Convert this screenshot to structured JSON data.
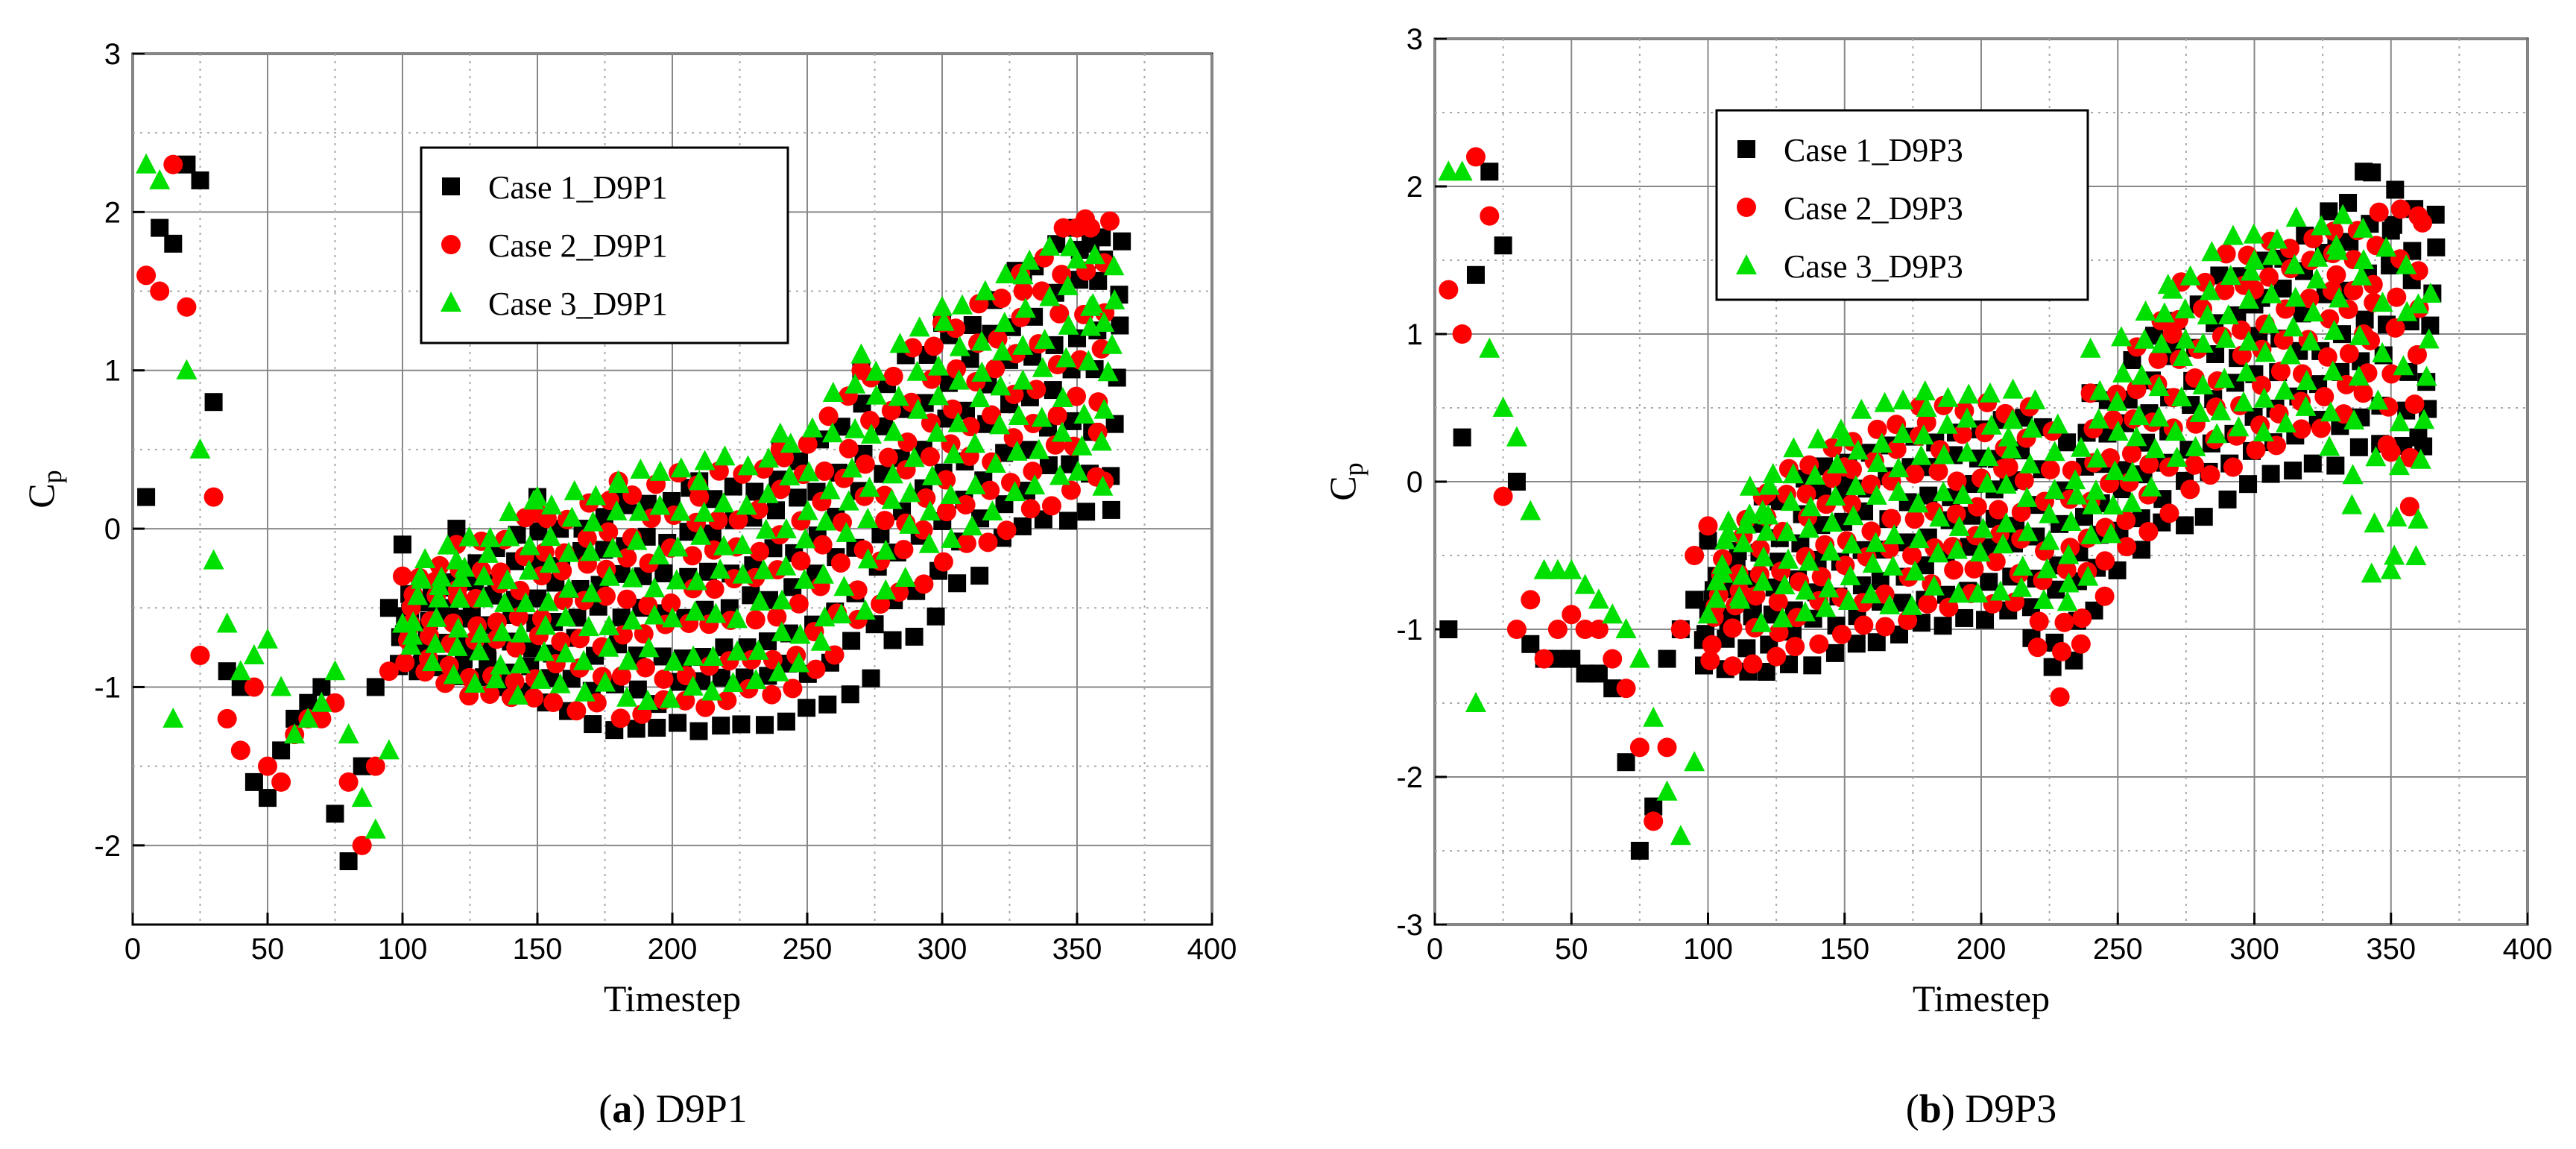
{
  "figure": {
    "series_colors": [
      "#000000",
      "#ff0000",
      "#00e000"
    ],
    "series_markers": [
      "square",
      "circle",
      "triangle"
    ]
  },
  "chart_data": [
    {
      "type": "scatter",
      "caption_letter": "a",
      "caption_text": "D9P1",
      "xlabel": "Timestep",
      "ylabel_main": "C",
      "ylabel_sub": "p",
      "xlim": [
        0,
        400
      ],
      "ylim": [
        -2.5,
        3
      ],
      "xticks": [
        "0",
        "50",
        "100",
        "150",
        "200",
        "250",
        "300",
        "350",
        "400"
      ],
      "yticks": [
        "-2",
        "-1",
        "0",
        "1",
        "2",
        "3"
      ],
      "legend_position": "top-center",
      "grid": true,
      "series": [
        {
          "name": "Case 1_D9P1",
          "x": [
            5,
            10,
            15,
            20,
            25,
            30,
            35,
            40,
            45,
            50,
            55,
            60,
            65,
            70,
            75,
            80,
            85,
            90,
            95,
            100,
            120,
            150,
            180,
            210,
            240,
            270,
            300,
            330,
            350,
            355,
            360
          ],
          "y": [
            0.2,
            1.9,
            1.8,
            2.3,
            2.2,
            0.8,
            -0.9,
            -1.0,
            -1.6,
            -1.7,
            -1.4,
            -1.2,
            -1.1,
            -1.0,
            -1.8,
            -2.1,
            -1.5,
            -1.0,
            -0.5,
            -0.1,
            0.0,
            0.2,
            0.2,
            0.3,
            0.5,
            1.0,
            1.3,
            1.6,
            1.9,
            1.8,
            1.7
          ],
          "band_min": [
            -0.9,
            -0.9,
            -1.0,
            -1.1,
            -1.2,
            -1.3,
            -1.25,
            -1.2,
            -1.15,
            -1.0,
            -0.7,
            -0.4,
            -0.1,
            0.1,
            0.1
          ],
          "band_max": [
            -0.4,
            -0.3,
            -0.1,
            0.0,
            0.1,
            0.2,
            0.25,
            0.3,
            0.5,
            0.8,
            1.1,
            1.3,
            1.6,
            1.8,
            1.8
          ]
        },
        {
          "name": "Case 2_D9P1",
          "x": [
            5,
            10,
            15,
            20,
            25,
            30,
            35,
            40,
            45,
            50,
            55,
            60,
            65,
            70,
            75,
            80,
            85,
            90,
            95,
            100,
            120,
            150,
            180,
            210,
            240,
            270,
            300,
            330,
            350,
            355,
            360
          ],
          "y": [
            1.6,
            1.5,
            2.3,
            1.4,
            -0.8,
            0.2,
            -1.2,
            -1.4,
            -1.0,
            -1.5,
            -1.6,
            -1.3,
            -1.2,
            -1.2,
            -1.1,
            -1.6,
            -2.0,
            -1.5,
            -0.9,
            -0.3,
            -0.1,
            0.1,
            0.3,
            0.2,
            0.5,
            1.0,
            1.3,
            1.5,
            1.9,
            1.9,
            0.3
          ],
          "band_min": [
            -0.8,
            -1.0,
            -1.1,
            -1.1,
            -1.15,
            -1.15,
            -1.1,
            -1.05,
            -1.0,
            -0.6,
            -0.4,
            -0.1,
            0.0,
            0.2,
            0.3
          ],
          "band_max": [
            -0.3,
            -0.2,
            0.0,
            0.1,
            0.2,
            0.3,
            0.3,
            0.4,
            0.6,
            0.9,
            1.1,
            1.3,
            1.6,
            1.9,
            1.9
          ]
        },
        {
          "name": "Case 3_D9P1",
          "x": [
            5,
            10,
            15,
            20,
            25,
            30,
            35,
            40,
            45,
            50,
            55,
            60,
            65,
            70,
            75,
            80,
            85,
            90,
            95,
            100,
            120,
            150,
            180,
            210,
            240,
            270,
            300,
            330,
            350,
            355,
            360
          ],
          "y": [
            2.3,
            2.2,
            -1.2,
            1.0,
            0.5,
            -0.2,
            -0.6,
            -0.9,
            -0.8,
            -0.7,
            -1.0,
            -1.3,
            -1.2,
            -1.1,
            -0.9,
            -1.3,
            -1.7,
            -1.9,
            -1.4,
            -0.6,
            -0.2,
            0.2,
            0.3,
            0.3,
            0.6,
            1.1,
            1.4,
            1.6,
            1.7,
            1.4,
            1.3
          ],
          "band_min": [
            -0.7,
            -0.9,
            -1.0,
            -1.0,
            -1.0,
            -1.05,
            -1.0,
            -0.95,
            -0.9,
            -0.5,
            -0.3,
            0.0,
            0.2,
            0.3,
            0.3
          ],
          "band_max": [
            -0.2,
            -0.1,
            0.1,
            0.2,
            0.3,
            0.35,
            0.4,
            0.4,
            0.7,
            1.0,
            1.2,
            1.4,
            1.6,
            1.8,
            1.6
          ]
        }
      ]
    },
    {
      "type": "scatter",
      "caption_letter": "b",
      "caption_text": "D9P3",
      "xlabel": "Timestep",
      "ylabel_main": "C",
      "ylabel_sub": "p",
      "xlim": [
        0,
        400
      ],
      "ylim": [
        -3,
        3
      ],
      "xticks": [
        "0",
        "50",
        "100",
        "150",
        "200",
        "250",
        "300",
        "350",
        "400"
      ],
      "yticks": [
        "-3",
        "-2",
        "-1",
        "0",
        "1",
        "2",
        "3"
      ],
      "legend_position": "top-left",
      "grid": true,
      "series": [
        {
          "name": "Case 1_D9P3",
          "x": [
            5,
            10,
            15,
            20,
            25,
            30,
            35,
            40,
            45,
            50,
            55,
            60,
            65,
            70,
            75,
            80,
            85,
            90,
            95,
            100,
            120,
            150,
            180,
            210,
            240,
            270,
            300,
            330,
            340,
            350,
            360
          ],
          "y": [
            -1.0,
            0.3,
            1.4,
            2.1,
            1.6,
            0.0,
            -1.1,
            -1.2,
            -1.2,
            -1.2,
            -1.3,
            -1.3,
            -1.4,
            -1.9,
            -2.5,
            -2.2,
            -1.2,
            -1.0,
            -0.8,
            -0.4,
            -0.1,
            0.0,
            0.1,
            0.0,
            0.6,
            0.9,
            1.2,
            1.6,
            2.1,
            1.7,
            0.3
          ],
          "band_min": [
            -1.2,
            -1.3,
            -1.2,
            -1.1,
            -1.0,
            -0.95,
            -0.9,
            -1.4,
            -0.6,
            -0.3,
            -0.2,
            0.0,
            0.1,
            0.2,
            0.2
          ],
          "band_max": [
            -0.6,
            -0.2,
            0.1,
            0.2,
            0.3,
            0.4,
            0.4,
            0.2,
            0.8,
            1.1,
            1.4,
            1.5,
            1.8,
            2.1,
            1.8
          ]
        },
        {
          "name": "Case 2_D9P3",
          "x": [
            5,
            10,
            15,
            20,
            25,
            30,
            35,
            40,
            45,
            50,
            55,
            60,
            65,
            70,
            75,
            80,
            85,
            90,
            95,
            100,
            120,
            150,
            180,
            210,
            240,
            270,
            300,
            330,
            340,
            350,
            360
          ],
          "y": [
            1.3,
            1.0,
            2.2,
            1.8,
            -0.1,
            -1.0,
            -0.8,
            -1.2,
            -1.0,
            -0.9,
            -1.0,
            -1.0,
            -1.2,
            -1.4,
            -1.8,
            -2.3,
            -1.8,
            -1.0,
            -0.5,
            -0.3,
            -0.1,
            0.1,
            0.4,
            0.1,
            0.6,
            1.0,
            1.3,
            1.4,
            1.0,
            0.2,
            1.8
          ],
          "band_min": [
            -1.2,
            -1.2,
            -1.1,
            -1.0,
            -0.9,
            -0.8,
            -0.8,
            -1.5,
            -0.5,
            -0.2,
            0.0,
            0.2,
            0.4,
            0.6,
            -0.3
          ],
          "band_max": [
            -0.5,
            0.0,
            0.2,
            0.4,
            0.5,
            0.5,
            0.5,
            0.1,
            0.8,
            1.3,
            1.5,
            1.6,
            1.7,
            1.8,
            1.8
          ]
        },
        {
          "name": "Case 3_D9P3",
          "x": [
            5,
            10,
            15,
            20,
            25,
            30,
            35,
            40,
            45,
            50,
            55,
            60,
            65,
            70,
            75,
            80,
            85,
            90,
            95,
            100,
            120,
            150,
            180,
            210,
            240,
            270,
            300,
            330,
            340,
            350,
            360
          ],
          "y": [
            2.1,
            2.1,
            -1.5,
            0.9,
            0.5,
            0.3,
            -0.2,
            -0.6,
            -0.6,
            -0.6,
            -0.7,
            -0.8,
            -0.9,
            -1.0,
            -1.2,
            -1.6,
            -2.1,
            -2.4,
            -1.9,
            -0.9,
            -0.2,
            0.3,
            0.5,
            0.3,
            0.9,
            1.3,
            1.5,
            1.6,
            1.5,
            -0.6,
            1.2
          ],
          "band_min": [
            -0.8,
            -0.9,
            -0.9,
            -0.8,
            -0.8,
            -0.7,
            -0.7,
            -0.9,
            -0.3,
            0.1,
            0.3,
            0.4,
            0.5,
            -0.6,
            -0.5
          ],
          "band_max": [
            -0.3,
            0.1,
            0.3,
            0.5,
            0.6,
            0.6,
            0.6,
            0.2,
            1.0,
            1.4,
            1.6,
            1.7,
            1.8,
            1.6,
            1.3
          ]
        }
      ]
    }
  ]
}
